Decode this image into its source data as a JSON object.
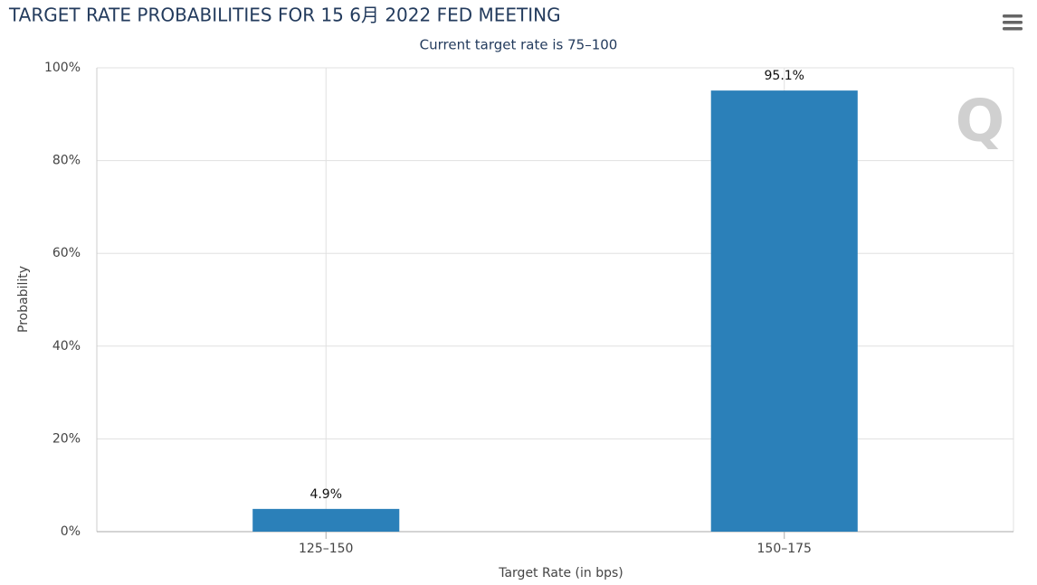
{
  "chart_data": {
    "type": "bar",
    "title": "TARGET RATE PROBABILITIES FOR 15 6月 2022 FED MEETING",
    "subtitle": "Current target rate is 75–100",
    "x_label": "Target Rate (in bps)",
    "y_label": "Probability",
    "categories": [
      "125–150",
      "150–175"
    ],
    "values": [
      4.9,
      95.1
    ],
    "value_labels": [
      "4.9%",
      "95.1%"
    ],
    "color": "#2b80b9",
    "ylim": [
      0,
      100
    ],
    "yticks": [
      {
        "value": 0,
        "label": "0%"
      },
      {
        "value": 20,
        "label": "20%"
      },
      {
        "value": 40,
        "label": "40%"
      },
      {
        "value": 60,
        "label": "60%"
      },
      {
        "value": 80,
        "label": "80%"
      },
      {
        "value": 100,
        "label": "100%"
      }
    ],
    "grid": true
  }
}
